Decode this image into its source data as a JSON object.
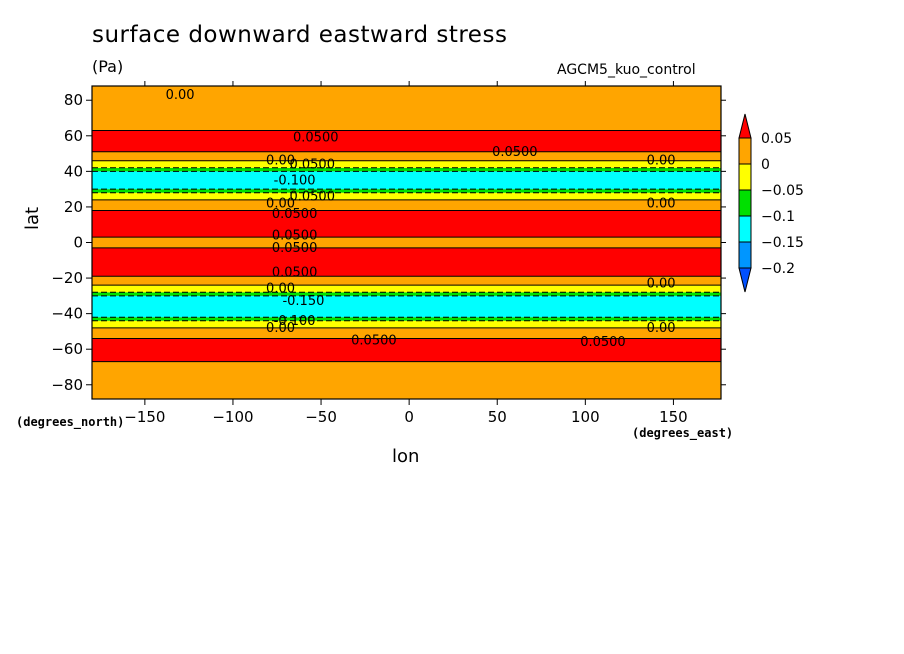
{
  "chart_data": {
    "type": "heatmap",
    "title": "surface downward eastward stress",
    "units_label": "(Pa)",
    "run_label": "AGCM5_kuo_control",
    "xlabel": "lon",
    "ylabel": "lat",
    "x_units": "(degrees_east)",
    "y_units": "(degrees_north)",
    "xlim": [
      -180,
      177
    ],
    "ylim": [
      -88,
      88
    ],
    "x_ticks": [
      -150,
      -100,
      -50,
      0,
      50,
      100,
      150
    ],
    "y_ticks": [
      -80,
      -60,
      -40,
      -20,
      0,
      20,
      40,
      60,
      80
    ],
    "x_tick_labels": [
      "−150",
      "−100",
      "−50",
      "0",
      "50",
      "100",
      "150"
    ],
    "y_tick_labels": [
      "−80",
      "−60",
      "−40",
      "−20",
      "0",
      "20",
      "40",
      "60",
      "80"
    ],
    "colorbar": {
      "labels": [
        "0.05",
        "0",
        "−0.05",
        "−0.1",
        "−0.15",
        "−0.2"
      ],
      "colors": [
        "#ff0000",
        "#ffa500",
        "#ffff00",
        "#00e000",
        "#00ffff",
        "#0096ff",
        "#0050ff"
      ]
    },
    "zonal_bands": [
      {
        "lat": [
          -88,
          -67
        ],
        "level": "0 to 0.05"
      },
      {
        "lat": [
          -67,
          -54
        ],
        "level": "above 0.05"
      },
      {
        "lat": [
          -54,
          -48
        ],
        "level": "0 to 0.05"
      },
      {
        "lat": [
          -48,
          -44
        ],
        "level": "-0.05 to 0"
      },
      {
        "lat": [
          -44,
          -42
        ],
        "level": "-0.1 to -0.05"
      },
      {
        "lat": [
          -42,
          -30
        ],
        "level": "-0.15 to -0.1"
      },
      {
        "lat": [
          -30,
          -28
        ],
        "level": "-0.1 to -0.05"
      },
      {
        "lat": [
          -28,
          -24
        ],
        "level": "-0.05 to 0"
      },
      {
        "lat": [
          -24,
          -19
        ],
        "level": "0 to 0.05"
      },
      {
        "lat": [
          -19,
          -3
        ],
        "level": "above 0.05"
      },
      {
        "lat": [
          -3,
          3
        ],
        "level": "0 to 0.05"
      },
      {
        "lat": [
          3,
          18
        ],
        "level": "above 0.05"
      },
      {
        "lat": [
          18,
          24
        ],
        "level": "0 to 0.05"
      },
      {
        "lat": [
          24,
          28
        ],
        "level": "-0.05 to 0"
      },
      {
        "lat": [
          28,
          30
        ],
        "level": "-0.1 to -0.05"
      },
      {
        "lat": [
          30,
          40
        ],
        "level": "-0.15 to -0.1"
      },
      {
        "lat": [
          40,
          42
        ],
        "level": "-0.1 to -0.05"
      },
      {
        "lat": [
          42,
          46
        ],
        "level": "-0.05 to 0"
      },
      {
        "lat": [
          46,
          51
        ],
        "level": "0 to 0.05"
      },
      {
        "lat": [
          51,
          63
        ],
        "level": "above 0.05"
      },
      {
        "lat": [
          63,
          88
        ],
        "level": "0 to 0.05"
      }
    ],
    "contour_labels": [
      {
        "text": "0.00",
        "lon": -130,
        "lat": 83
      },
      {
        "text": "0.0500",
        "lon": -53,
        "lat": 59
      },
      {
        "text": "0.0500",
        "lon": 60,
        "lat": 51
      },
      {
        "text": "0.00",
        "lon": -73,
        "lat": 46
      },
      {
        "text": "0.0500",
        "lon": -55,
        "lat": 44
      },
      {
        "text": "0.00",
        "lon": 143,
        "lat": 46
      },
      {
        "text": "-0.100",
        "lon": -65,
        "lat": 35
      },
      {
        "text": "0.0500",
        "lon": -55,
        "lat": 26
      },
      {
        "text": "0.00",
        "lon": -73,
        "lat": 22
      },
      {
        "text": "0.00",
        "lon": 143,
        "lat": 22
      },
      {
        "text": "0.0500",
        "lon": -65,
        "lat": 16
      },
      {
        "text": "0.0500",
        "lon": -65,
        "lat": 4
      },
      {
        "text": "0.0500",
        "lon": -65,
        "lat": -3
      },
      {
        "text": "0.0500",
        "lon": -65,
        "lat": -17
      },
      {
        "text": "0.00",
        "lon": 143,
        "lat": -23
      },
      {
        "text": "0.00",
        "lon": -73,
        "lat": -26
      },
      {
        "text": "-0.150",
        "lon": -60,
        "lat": -33
      },
      {
        "text": "-0.100",
        "lon": -65,
        "lat": -44
      },
      {
        "text": "0.00",
        "lon": -73,
        "lat": -48
      },
      {
        "text": "0.00",
        "lon": 143,
        "lat": -48
      },
      {
        "text": "0.0500",
        "lon": -20,
        "lat": -55
      },
      {
        "text": "0.0500",
        "lon": 110,
        "lat": -56
      }
    ]
  }
}
